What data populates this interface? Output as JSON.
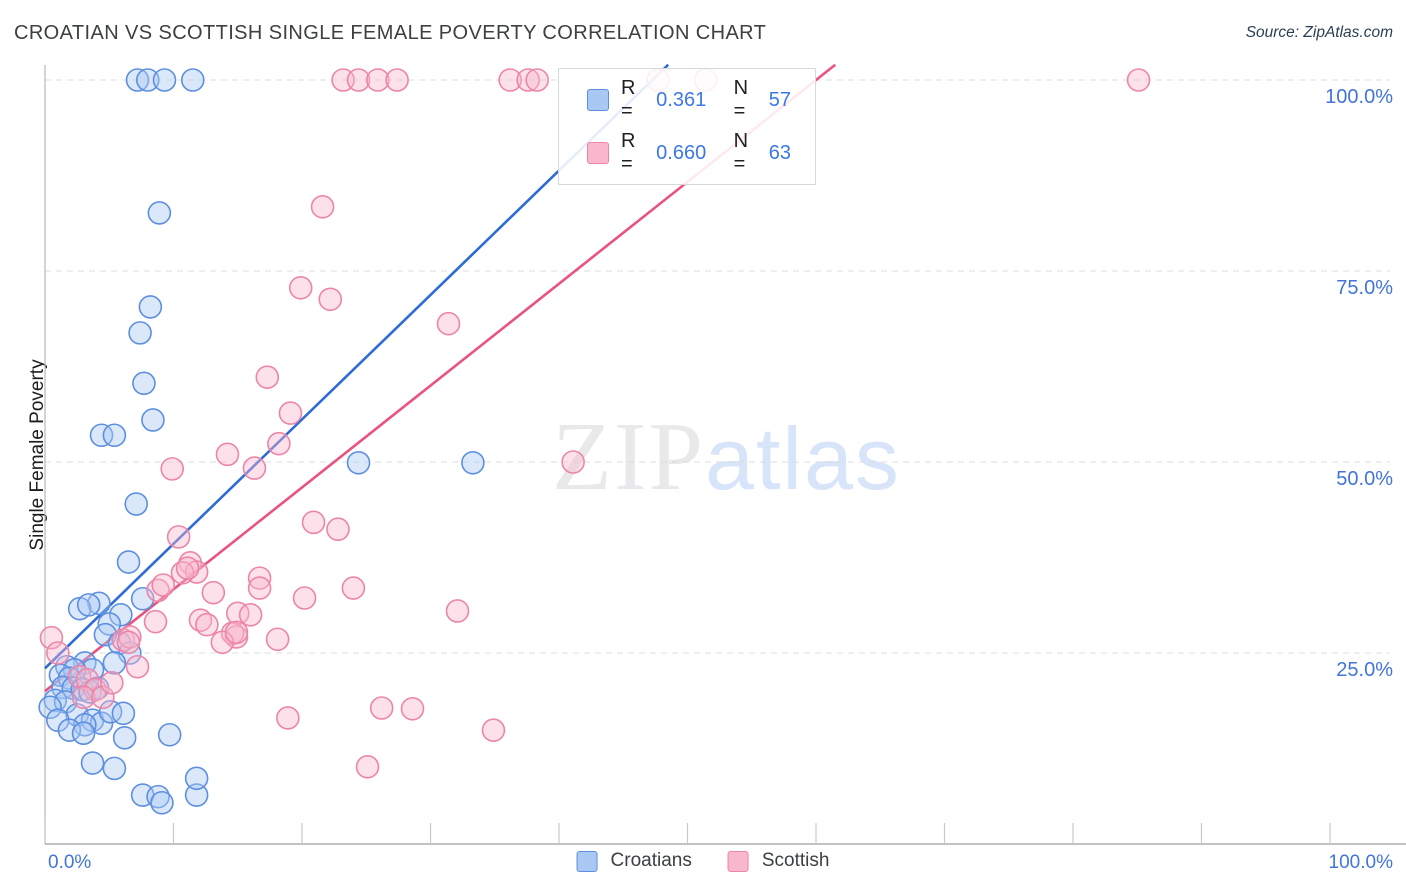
{
  "header": {
    "title": "CROATIAN VS SCOTTISH SINGLE FEMALE POVERTY CORRELATION CHART",
    "source": "Source: ZipAtlas.com"
  },
  "watermark": {
    "zip": "ZIP",
    "atlas": "atlas"
  },
  "axes": {
    "y_title": "Single Female Poverty",
    "y_tick_labels": [
      "100.0%",
      "75.0%",
      "50.0%",
      "25.0%"
    ],
    "x_tick_left": "0.0%",
    "x_tick_right": "100.0%",
    "tick_label_color": "#4274d9"
  },
  "legend_box": {
    "rows": [
      {
        "series": "Croatians",
        "r_label": "R =",
        "r_value": "0.361",
        "n_label": "N =",
        "n_value": "57"
      },
      {
        "series": "Scottish",
        "r_label": "R =",
        "r_value": "0.660",
        "n_label": "N =",
        "n_value": "63"
      }
    ]
  },
  "bottom_legend": {
    "items": [
      "Croatians",
      "Scottish"
    ]
  },
  "chart_data": {
    "type": "scatter",
    "title": "CROATIAN VS SCOTTISH SINGLE FEMALE POVERTY CORRELATION CHART",
    "xlabel": "",
    "ylabel": "Single Female Poverty",
    "xlim": [
      0,
      100
    ],
    "ylim": [
      0,
      100
    ],
    "x_tick_step_pct": 10,
    "grid_y_pct": [
      25,
      50,
      75,
      100
    ],
    "grid_on": true,
    "legend_position": "top-center-box and bottom-center",
    "series": [
      {
        "name": "Croatians",
        "R": 0.361,
        "N": 57,
        "fill": "#a9c9f4",
        "stroke": "#5c8fe0",
        "trend_color": "#2e6bd4",
        "trend_from": [
          0,
          23
        ],
        "trend_to": [
          48.5,
          102
        ],
        "points": [
          [
            7.2,
            100
          ],
          [
            8,
            100
          ],
          [
            9.3,
            100
          ],
          [
            11.5,
            100
          ],
          [
            8.9,
            82.6
          ],
          [
            8.2,
            70.3
          ],
          [
            7.4,
            66.9
          ],
          [
            7.7,
            60.3
          ],
          [
            8.4,
            55.5
          ],
          [
            4.4,
            53.5
          ],
          [
            5.4,
            53.5
          ],
          [
            7.1,
            44.5
          ],
          [
            6.5,
            36.9
          ],
          [
            24.4,
            49.9
          ],
          [
            33.3,
            49.9
          ],
          [
            7.6,
            32.1
          ],
          [
            4.2,
            31.5
          ],
          [
            2.7,
            30.8
          ],
          [
            3.4,
            31.3
          ],
          [
            5.9,
            30
          ],
          [
            5,
            28.8
          ],
          [
            4.7,
            27.4
          ],
          [
            5.8,
            26.3
          ],
          [
            6.6,
            25
          ],
          [
            5.4,
            23.7
          ],
          [
            3.1,
            23.7
          ],
          [
            3.7,
            22.8
          ],
          [
            1.7,
            23.2
          ],
          [
            2.3,
            22.8
          ],
          [
            1.2,
            22.1
          ],
          [
            1.9,
            21.7
          ],
          [
            1.4,
            20.5
          ],
          [
            2.2,
            20.4
          ],
          [
            2.9,
            20.2
          ],
          [
            3.5,
            19.9
          ],
          [
            4.1,
            20.4
          ],
          [
            0.8,
            18.8
          ],
          [
            1.6,
            18.6
          ],
          [
            0.4,
            17.9
          ],
          [
            2.5,
            16.9
          ],
          [
            1,
            16.2
          ],
          [
            3.7,
            16.2
          ],
          [
            4.4,
            15.8
          ],
          [
            5.1,
            17.3
          ],
          [
            6.1,
            17.1
          ],
          [
            6.2,
            13.9
          ],
          [
            3.1,
            15.6
          ],
          [
            1.9,
            14.9
          ],
          [
            3,
            14.5
          ],
          [
            9.7,
            14.3
          ],
          [
            3.7,
            10.6
          ],
          [
            5.4,
            9.9
          ],
          [
            7.6,
            6.4
          ],
          [
            8.8,
            6.2
          ],
          [
            9.1,
            5.4
          ],
          [
            11.8,
            6.4
          ],
          [
            11.8,
            8.6
          ]
        ]
      },
      {
        "name": "Scottish",
        "R": 0.66,
        "N": 63,
        "fill": "#f9b7cd",
        "stroke": "#ec85a8",
        "trend_color": "#e8537f",
        "trend_from": [
          0,
          20
        ],
        "trend_to": [
          61.5,
          102
        ],
        "points": [
          [
            23.2,
            100
          ],
          [
            24.4,
            100
          ],
          [
            25.9,
            100
          ],
          [
            27.4,
            100
          ],
          [
            36.2,
            100
          ],
          [
            37.6,
            100
          ],
          [
            38.3,
            100
          ],
          [
            47.7,
            100
          ],
          [
            51.4,
            100
          ],
          [
            85.1,
            100
          ],
          [
            21.6,
            83.4
          ],
          [
            19.9,
            72.8
          ],
          [
            22.2,
            71.3
          ],
          [
            31.4,
            68.1
          ],
          [
            17.3,
            61.1
          ],
          [
            19.1,
            56.4
          ],
          [
            18.2,
            52.4
          ],
          [
            14.2,
            51
          ],
          [
            16.3,
            49.2
          ],
          [
            9.9,
            49.1
          ],
          [
            41.1,
            50
          ],
          [
            10.4,
            40.2
          ],
          [
            20.9,
            42.1
          ],
          [
            22.8,
            41.2
          ],
          [
            11.3,
            36.8
          ],
          [
            11.8,
            35.6
          ],
          [
            16.7,
            34.8
          ],
          [
            8.8,
            33.2
          ],
          [
            10.7,
            35.5
          ],
          [
            11.1,
            36.1
          ],
          [
            9.2,
            33.9
          ],
          [
            13.1,
            32.9
          ],
          [
            20.2,
            32.2
          ],
          [
            24,
            33.5
          ],
          [
            16.7,
            33.5
          ],
          [
            15,
            30.2
          ],
          [
            16,
            30
          ],
          [
            32.1,
            30.5
          ],
          [
            14.9,
            27.1
          ],
          [
            18.1,
            26.8
          ],
          [
            0.5,
            27
          ],
          [
            1,
            25
          ],
          [
            6.1,
            26.7
          ],
          [
            6.6,
            27.1
          ],
          [
            8.6,
            29.1
          ],
          [
            12.1,
            29.3
          ],
          [
            12.6,
            28.7
          ],
          [
            14.6,
            27.6
          ],
          [
            13.8,
            26.4
          ],
          [
            14.9,
            27.7
          ],
          [
            6.5,
            26.4
          ],
          [
            7.2,
            23.2
          ],
          [
            2.7,
            21.9
          ],
          [
            3.3,
            21.5
          ],
          [
            3.9,
            20.2
          ],
          [
            3,
            19.2
          ],
          [
            4.5,
            19.2
          ],
          [
            5.2,
            21.1
          ],
          [
            18.9,
            16.5
          ],
          [
            26.2,
            17.8
          ],
          [
            28.6,
            17.7
          ],
          [
            25.1,
            10.1
          ],
          [
            34.9,
            14.9
          ]
        ]
      }
    ]
  }
}
